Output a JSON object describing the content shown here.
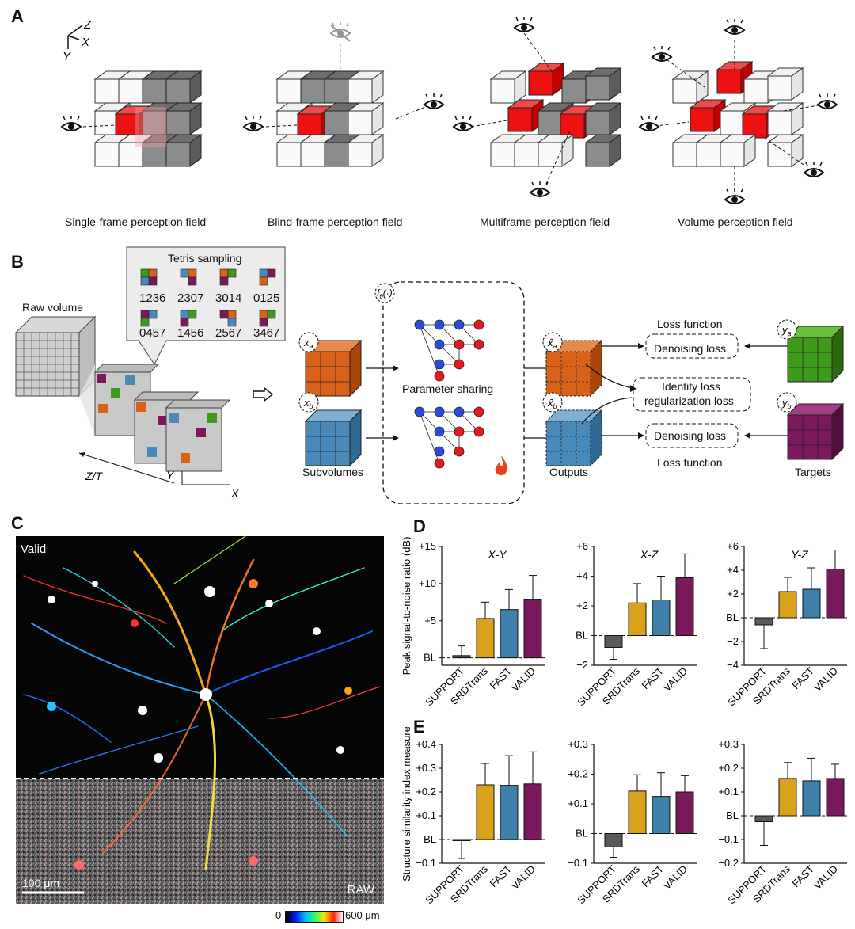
{
  "panels": {
    "a": "A",
    "b": "B",
    "c": "C",
    "d": "D",
    "e": "E"
  },
  "panel_a": {
    "axes": {
      "z": "Z",
      "x": "X",
      "y": "Y"
    },
    "captions": [
      "Single-frame perception field",
      "Blind-frame perception field",
      "Multiframe perception field",
      "Volume perception field"
    ]
  },
  "panel_b": {
    "raw_volume": "Raw volume",
    "tetris_title": "Tetris sampling",
    "tetris_codes": [
      "1236",
      "2307",
      "3014",
      "0125",
      "0457",
      "1456",
      "2567",
      "3467"
    ],
    "axes": {
      "zt": "Z/T",
      "y": "Y",
      "x": "X"
    },
    "subvolumes": "Subvolumes",
    "xa": "x",
    "xa_sub": "a",
    "xb": "x",
    "xb_sub": "b",
    "f_theta": "f",
    "f_theta_sub": "θ",
    "f_theta_arg": "(·)",
    "param_sharing": "Parameter sharing",
    "outputs": "Outputs",
    "xhat_a": "x̂",
    "xhat_a_sub": "a",
    "xhat_b": "x̂",
    "xhat_b_sub": "b",
    "loss_function_top": "Loss function",
    "denoising_top": "Denoising loss",
    "identity_1": "Identity loss",
    "identity_2": "regularization loss",
    "denoising_bottom": "Denoising loss",
    "loss_function_bottom": "Loss function",
    "ya": "y",
    "ya_sub": "a",
    "yb": "y",
    "yb_sub": "b",
    "targets": "Targets"
  },
  "panel_c": {
    "valid": "Valid",
    "raw": "RAW",
    "scalebar": "100 μm",
    "colorbar_min": "0",
    "colorbar_max": "600 μm"
  },
  "colors": {
    "support": "#5a5a5a",
    "srdtrans": "#d9a21b",
    "fast": "#3f7fa8",
    "valid": "#7a1a5c",
    "red": "#ee1111",
    "orange": "#d9621b",
    "blue": "#4a8ab8",
    "green": "#3f9a1c",
    "purple": "#7a1a5c"
  },
  "chart_data": [
    {
      "type": "bar",
      "panel": "D",
      "title": "X-Y",
      "ylabel": "Peak signal-to-noise ratio (dB)",
      "categories": [
        "SUPPORT",
        "SRDTrans",
        "FAST",
        "VALID"
      ],
      "values": [
        0.3,
        5.3,
        6.5,
        7.9
      ],
      "errors": [
        1.3,
        2.2,
        2.7,
        3.2
      ],
      "ylim": [
        -1,
        15
      ],
      "yticks": [
        {
          "v": 0,
          "t": "BL"
        },
        {
          "v": 5,
          "t": "+5"
        },
        {
          "v": 10,
          "t": "+10"
        },
        {
          "v": 15,
          "t": "+15"
        }
      ]
    },
    {
      "type": "bar",
      "panel": "D",
      "title": "X-Z",
      "ylabel": "",
      "categories": [
        "SUPPORT",
        "SRDTrans",
        "FAST",
        "VALID"
      ],
      "values": [
        -0.8,
        2.2,
        2.4,
        3.9
      ],
      "errors": [
        0.8,
        1.3,
        1.6,
        1.6
      ],
      "ylim": [
        -2,
        6
      ],
      "yticks": [
        {
          "v": -2,
          "t": "−2"
        },
        {
          "v": 0,
          "t": "BL"
        },
        {
          "v": 2,
          "t": "+2"
        },
        {
          "v": 4,
          "t": "+4"
        },
        {
          "v": 6,
          "t": "+6"
        }
      ]
    },
    {
      "type": "bar",
      "panel": "D",
      "title": "Y-Z",
      "ylabel": "",
      "categories": [
        "SUPPORT",
        "SRDTrans",
        "FAST",
        "VALID"
      ],
      "values": [
        -0.6,
        2.2,
        2.4,
        4.1
      ],
      "errors": [
        2.0,
        1.2,
        1.8,
        1.6
      ],
      "ylim": [
        -4,
        6
      ],
      "yticks": [
        {
          "v": -4,
          "t": "−4"
        },
        {
          "v": -2,
          "t": "−2"
        },
        {
          "v": 0,
          "t": "BL"
        },
        {
          "v": 2,
          "t": "+2"
        },
        {
          "v": 4,
          "t": "+4"
        },
        {
          "v": 6,
          "t": "+6"
        }
      ]
    },
    {
      "type": "bar",
      "panel": "E",
      "title": "",
      "ylabel": "Structure similarity index measure",
      "categories": [
        "SUPPORT",
        "SRDTrans",
        "FAST",
        "VALID"
      ],
      "values": [
        -0.005,
        0.23,
        0.228,
        0.234
      ],
      "errors": [
        0.075,
        0.09,
        0.125,
        0.135
      ],
      "ylim": [
        -0.1,
        0.4
      ],
      "yticks": [
        {
          "v": -0.1,
          "t": "−0.1"
        },
        {
          "v": 0,
          "t": "BL"
        },
        {
          "v": 0.1,
          "t": "+0.1"
        },
        {
          "v": 0.2,
          "t": "+0.2"
        },
        {
          "v": 0.3,
          "t": "+0.3"
        },
        {
          "v": 0.4,
          "t": "+0.4"
        }
      ]
    },
    {
      "type": "bar",
      "panel": "E",
      "title": "",
      "ylabel": "",
      "categories": [
        "SUPPORT",
        "SRDTrans",
        "FAST",
        "VALID"
      ],
      "values": [
        -0.045,
        0.143,
        0.125,
        0.14
      ],
      "errors": [
        0.035,
        0.055,
        0.08,
        0.055
      ],
      "ylim": [
        -0.1,
        0.3
      ],
      "yticks": [
        {
          "v": -0.1,
          "t": "−0.1"
        },
        {
          "v": 0,
          "t": "BL"
        },
        {
          "v": 0.1,
          "t": "+0.1"
        },
        {
          "v": 0.2,
          "t": "+0.2"
        },
        {
          "v": 0.3,
          "t": "+0.3"
        }
      ]
    },
    {
      "type": "bar",
      "panel": "E",
      "title": "",
      "ylabel": "",
      "categories": [
        "SUPPORT",
        "SRDTrans",
        "FAST",
        "VALID"
      ],
      "values": [
        -0.025,
        0.157,
        0.147,
        0.157
      ],
      "errors": [
        0.1,
        0.067,
        0.095,
        0.06
      ],
      "ylim": [
        -0.2,
        0.3
      ],
      "yticks": [
        {
          "v": -0.2,
          "t": "−0.2"
        },
        {
          "v": -0.1,
          "t": "−0.1"
        },
        {
          "v": 0,
          "t": "BL"
        },
        {
          "v": 0.1,
          "t": "+0.1"
        },
        {
          "v": 0.2,
          "t": "+0.2"
        },
        {
          "v": 0.3,
          "t": "+0.3"
        }
      ]
    }
  ]
}
